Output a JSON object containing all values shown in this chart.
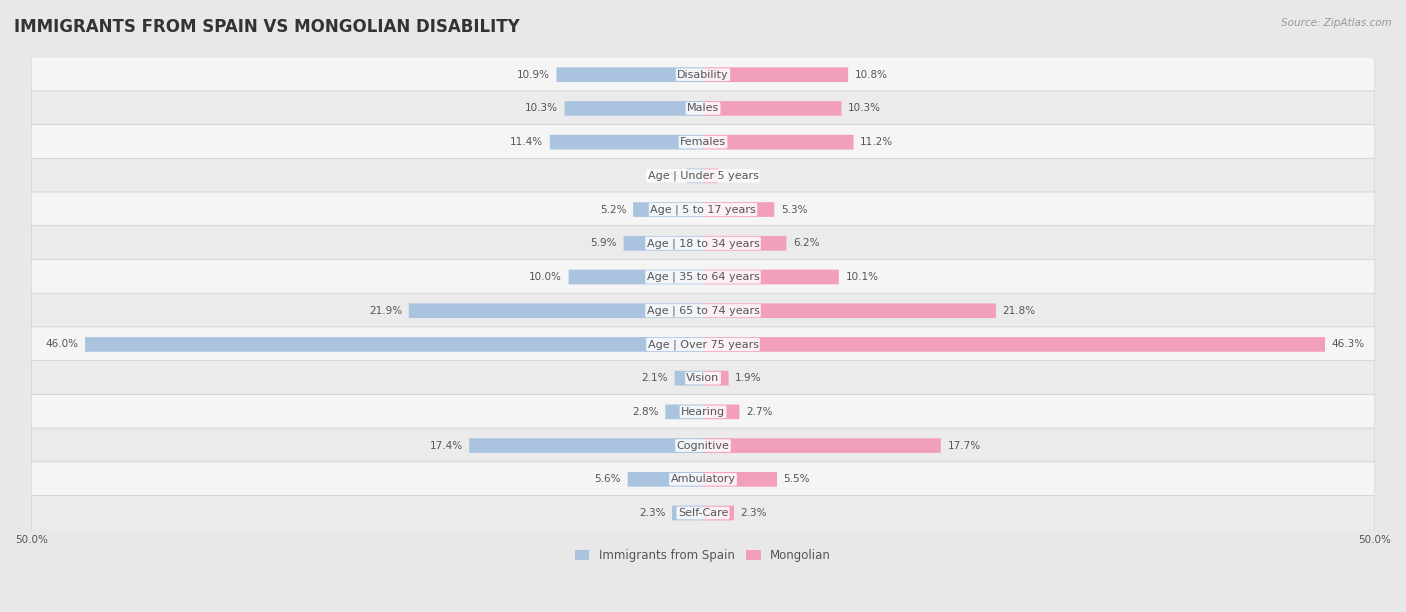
{
  "title": "IMMIGRANTS FROM SPAIN VS MONGOLIAN DISABILITY",
  "source": "Source: ZipAtlas.com",
  "categories": [
    "Disability",
    "Males",
    "Females",
    "Age | Under 5 years",
    "Age | 5 to 17 years",
    "Age | 18 to 34 years",
    "Age | 35 to 64 years",
    "Age | 65 to 74 years",
    "Age | Over 75 years",
    "Vision",
    "Hearing",
    "Cognitive",
    "Ambulatory",
    "Self-Care"
  ],
  "spain_values": [
    10.9,
    10.3,
    11.4,
    1.2,
    5.2,
    5.9,
    10.0,
    21.9,
    46.0,
    2.1,
    2.8,
    17.4,
    5.6,
    2.3
  ],
  "mongolian_values": [
    10.8,
    10.3,
    11.2,
    1.1,
    5.3,
    6.2,
    10.1,
    21.8,
    46.3,
    1.9,
    2.7,
    17.7,
    5.5,
    2.3
  ],
  "spain_color": "#aac4e0",
  "mongolian_color": "#f2a0ba",
  "spain_label": "Immigrants from Spain",
  "mongolian_label": "Mongolian",
  "axis_max": 50.0,
  "bg_color": "#e8e8e8",
  "row_colors": [
    "#f5f5f5",
    "#ebebeb"
  ],
  "title_fontsize": 12,
  "label_fontsize": 8,
  "value_fontsize": 7.5,
  "legend_fontsize": 8.5,
  "bar_height": 0.42
}
